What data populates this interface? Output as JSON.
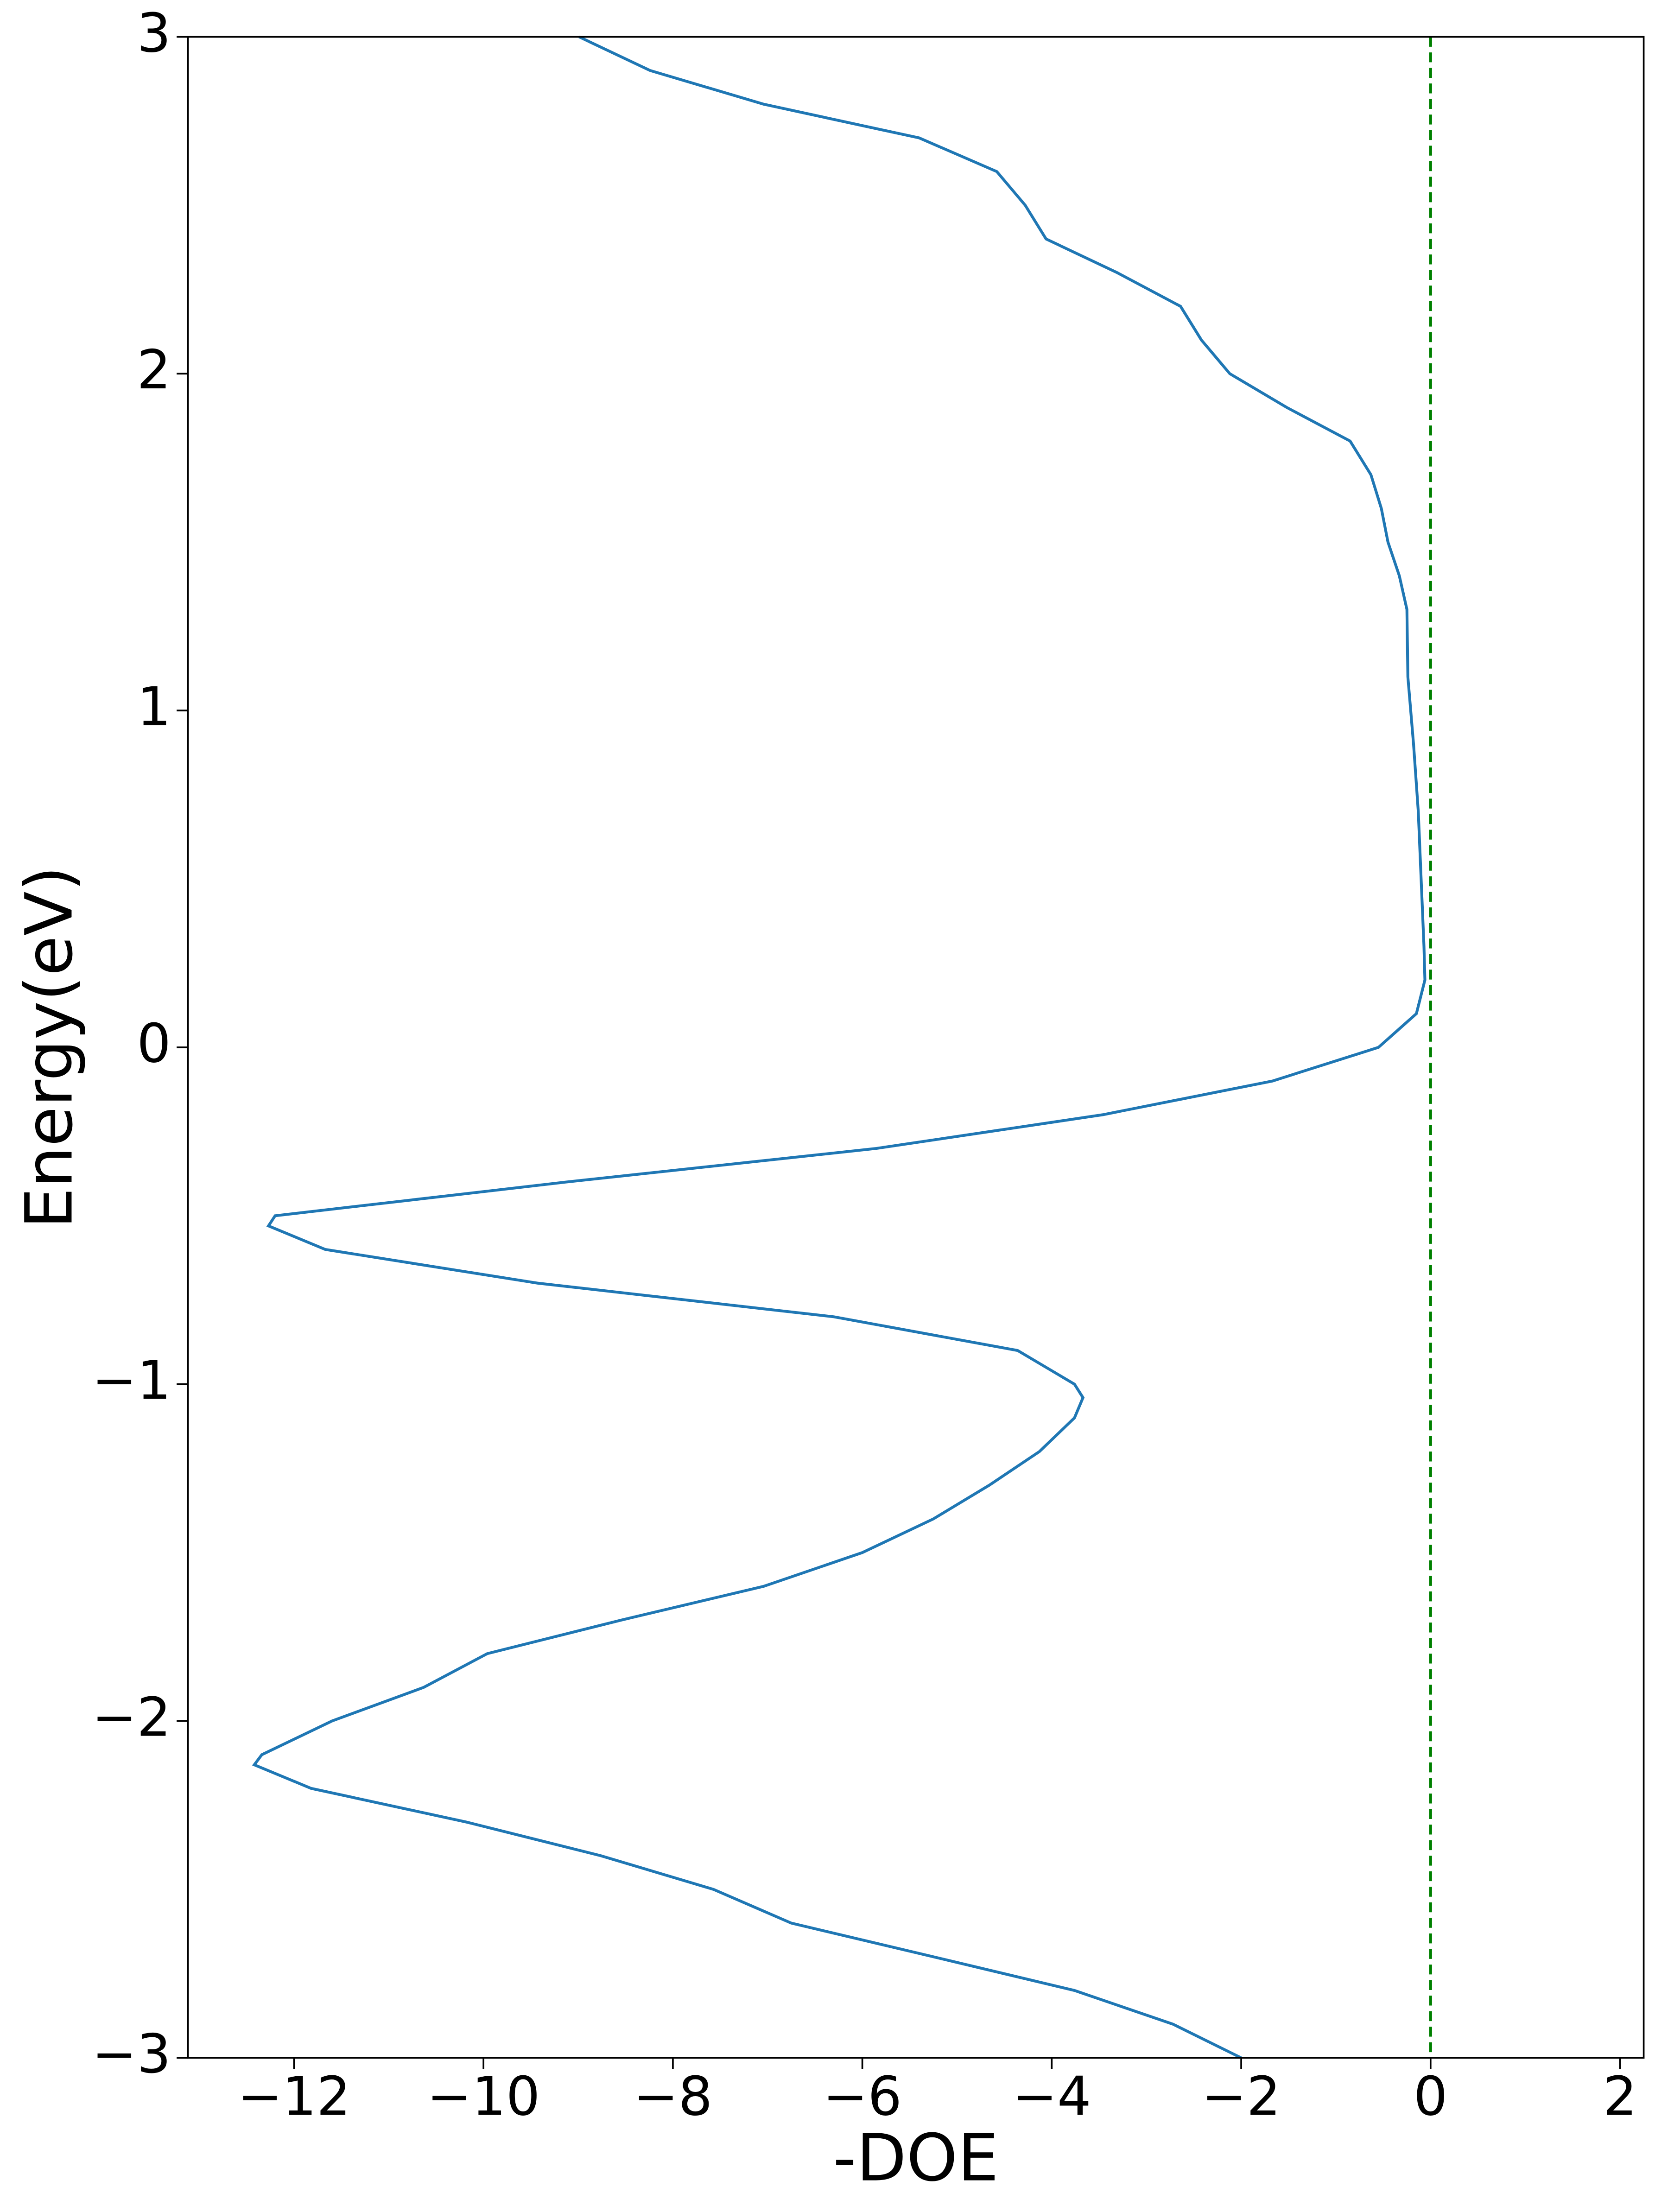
{
  "chart_data": {
    "type": "line",
    "xlabel": "-DOE",
    "ylabel": "Energy(eV)",
    "x": [
      -2.0,
      -2.72,
      -3.76,
      -5.25,
      -6.75,
      -7.57,
      -8.76,
      -10.18,
      -11.82,
      -12.42,
      -12.34,
      -11.6,
      -10.63,
      -9.96,
      -8.54,
      -7.04,
      -6.0,
      -5.25,
      -4.66,
      -4.13,
      -3.76,
      -3.67,
      -3.76,
      -4.36,
      -6.3,
      -9.43,
      -11.67,
      -12.27,
      -12.2,
      -9.13,
      -5.85,
      -3.46,
      -1.67,
      -0.55,
      -0.15,
      -0.06,
      -0.07,
      -0.1,
      -0.13,
      -0.18,
      -0.24,
      -0.25,
      -0.33,
      -0.45,
      -0.52,
      -0.63,
      -0.85,
      -1.52,
      -2.12,
      -2.42,
      -2.64,
      -3.31,
      -4.06,
      -4.28,
      -4.58,
      -5.4,
      -7.04,
      -8.24,
      -8.99
    ],
    "series": [
      {
        "color": "#1f77b4",
        "values": [
          -3.0,
          -2.9,
          -2.8,
          -2.7,
          -2.6,
          -2.5,
          -2.4,
          -2.3,
          -2.2,
          -2.13,
          -2.1,
          -2.0,
          -1.9,
          -1.8,
          -1.7,
          -1.6,
          -1.5,
          -1.4,
          -1.3,
          -1.2,
          -1.1,
          -1.04,
          -1.0,
          -0.9,
          -0.8,
          -0.7,
          -0.6,
          -0.53,
          -0.5,
          -0.4,
          -0.3,
          -0.2,
          -0.1,
          0.0,
          0.1,
          0.2,
          0.3,
          0.5,
          0.7,
          0.9,
          1.1,
          1.3,
          1.4,
          1.5,
          1.6,
          1.7,
          1.8,
          1.9,
          2.0,
          2.1,
          2.2,
          2.3,
          2.4,
          2.5,
          2.6,
          2.7,
          2.8,
          2.9,
          3.0
        ]
      }
    ],
    "vline": {
      "value": 0,
      "color": "#008000"
    },
    "xlim": [
      -13.12,
      2.25
    ],
    "ylim": [
      -3,
      3
    ],
    "xticks": [
      {
        "value": -12,
        "label": "−12"
      },
      {
        "value": -10,
        "label": "−10"
      },
      {
        "value": -8,
        "label": "−8"
      },
      {
        "value": -6,
        "label": "−6"
      },
      {
        "value": -4,
        "label": "−4"
      },
      {
        "value": -2,
        "label": "−2"
      },
      0,
      2
    ],
    "yticks": [
      {
        "value": -3,
        "label": "−3"
      },
      {
        "value": -2,
        "label": "−2"
      },
      {
        "value": -1,
        "label": "−1"
      },
      0,
      1,
      2,
      3
    ]
  }
}
